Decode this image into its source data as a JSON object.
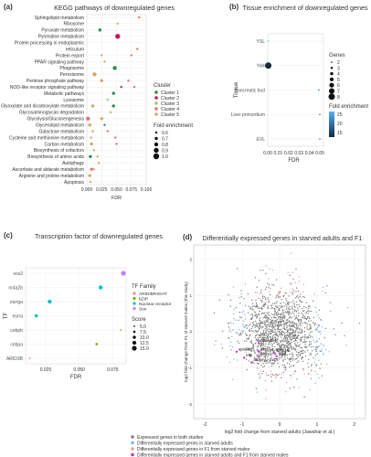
{
  "panels": {
    "a": {
      "letter": "(a)",
      "title": "KEGG pathways of downregulated genes"
    },
    "b": {
      "letter": "(b)",
      "title": "Tissue enrichment of downregulated genes"
    },
    "c": {
      "letter": "(c)",
      "title": "Transcription factor of downregulated genes"
    },
    "d": {
      "letter": "(d)",
      "title": "Differentially expressed genes in starved adults and F1"
    }
  },
  "chart_data": [
    {
      "id": "a",
      "type": "scatter",
      "title": "KEGG pathways of downregulated genes",
      "xlabel": "FDR",
      "ylabel": "",
      "xlim": [
        0,
        0.1
      ],
      "xticks": [
        "0.000",
        "0.025",
        "0.050",
        "0.075",
        "0.100"
      ],
      "xtick_values": [
        0,
        0.025,
        0.05,
        0.075,
        0.1
      ],
      "categories": [
        "Sphingolipid metabolism",
        "Ribosome",
        "Pyruvate metabolism",
        "Pyrimidine metabolism",
        "Protein processing in endoplasmic",
        "reticulum",
        "Protein export",
        "PPAR signaling pathway",
        "Phagosome",
        "Peroxisome",
        "Pentose phosphate pathway",
        "NOD-like receptor signaling pathway",
        "Metabolic pathways",
        "Lysosome",
        "Glyoxylate and dicarboxylate metabolism",
        "Glycosaminoglycan degradation",
        "Glycolysis/Gluconeogenesis",
        "Glycerolipid metabolism",
        "Galactose metabolism",
        "Cysteine and methionine metabolism",
        "Carbon metabolism",
        "Biosynthesis of cofactors",
        "Biosynthesis of amino acids",
        "Autophagy",
        "Ascorbate and aldarate metabolism",
        "Arginine and proline metabolism",
        "Apoptosis"
      ],
      "points": [
        {
          "row": 0,
          "x": 0.088,
          "cluster": 4,
          "fe": 0.6
        },
        {
          "row": 1,
          "x": 0.052,
          "cluster": 3,
          "fe": 0.6
        },
        {
          "row": 2,
          "x": 0.022,
          "cluster": 1,
          "fe": 0.7
        },
        {
          "row": 3,
          "x": 0.052,
          "cluster": 2,
          "fe": 0.9
        },
        {
          "row": 5,
          "x": 0.085,
          "cluster": 4,
          "fe": 0.6
        },
        {
          "row": 6,
          "x": 0.025,
          "cluster": 5,
          "fe": 0.6
        },
        {
          "row": 6,
          "x": 0.075,
          "cluster": 4,
          "fe": 0.6
        },
        {
          "row": 7,
          "x": 0.03,
          "cluster": 5,
          "fe": 0.6
        },
        {
          "row": 8,
          "x": 0.047,
          "cluster": 1,
          "fe": 0.8
        },
        {
          "row": 9,
          "x": 0.013,
          "cluster": 5,
          "fe": 0.8
        },
        {
          "row": 10,
          "x": 0.025,
          "cluster": 5,
          "fe": 0.7
        },
        {
          "row": 10,
          "x": 0.07,
          "cluster": 4,
          "fe": 0.6
        },
        {
          "row": 11,
          "x": 0.058,
          "cluster": 2,
          "fe": 0.6
        },
        {
          "row": 11,
          "x": 0.08,
          "cluster": 4,
          "fe": 0.6
        },
        {
          "row": 12,
          "x": 0.045,
          "cluster": 1,
          "fe": 0.7
        },
        {
          "row": 13,
          "x": 0.035,
          "cluster": 3,
          "fe": 0.6
        },
        {
          "row": 14,
          "x": 0.01,
          "cluster": 5,
          "fe": 0.7
        },
        {
          "row": 14,
          "x": 0.045,
          "cluster": 1,
          "fe": 0.7
        },
        {
          "row": 15,
          "x": 0.04,
          "cluster": 3,
          "fe": 0.6
        },
        {
          "row": 16,
          "x": 0.002,
          "cluster": 4,
          "fe": 0.8
        },
        {
          "row": 16,
          "x": 0.025,
          "cluster": 5,
          "fe": 0.7
        },
        {
          "row": 17,
          "x": 0.005,
          "cluster": 5,
          "fe": 0.7
        },
        {
          "row": 17,
          "x": 0.03,
          "cluster": 1,
          "fe": 0.6
        },
        {
          "row": 18,
          "x": 0.01,
          "cluster": 5,
          "fe": 0.6
        },
        {
          "row": 18,
          "x": 0.035,
          "cluster": 4,
          "fe": 0.6
        },
        {
          "row": 19,
          "x": 0.007,
          "cluster": 5,
          "fe": 0.6
        },
        {
          "row": 19,
          "x": 0.048,
          "cluster": 4,
          "fe": 0.6
        },
        {
          "row": 20,
          "x": 0.008,
          "cluster": 5,
          "fe": 0.7
        },
        {
          "row": 20,
          "x": 0.05,
          "cluster": 4,
          "fe": 0.6
        },
        {
          "row": 21,
          "x": 0.012,
          "cluster": 5,
          "fe": 0.6
        },
        {
          "row": 22,
          "x": 0.006,
          "cluster": 1,
          "fe": 0.7
        },
        {
          "row": 22,
          "x": 0.018,
          "cluster": 5,
          "fe": 0.6
        },
        {
          "row": 23,
          "x": 0.02,
          "cluster": 5,
          "fe": 0.6
        },
        {
          "row": 24,
          "x": 0.008,
          "cluster": 4,
          "fe": 0.7
        },
        {
          "row": 24,
          "x": 0.012,
          "cluster": 5,
          "fe": 0.6
        },
        {
          "row": 25,
          "x": 0.005,
          "cluster": 5,
          "fe": 0.7
        },
        {
          "row": 26,
          "x": 0.006,
          "cluster": 5,
          "fe": 0.6
        }
      ],
      "legend_cluster": {
        "title": "Cluster",
        "items": [
          "Cluster 1",
          "Cluster 2",
          "Cluster 3",
          "Cluster 4",
          "Cluster 5"
        ],
        "colors": [
          "#2e8b57",
          "#c2185b",
          "#9ccc65",
          "#e57373",
          "#d4a76a"
        ]
      },
      "legend_size": {
        "title": "Fold enrichment",
        "items": [
          "0.6",
          "0.7",
          "0.8",
          "0.9",
          "1.0"
        ],
        "values": [
          0.6,
          0.7,
          0.8,
          0.9,
          1.0
        ]
      }
    },
    {
      "id": "b",
      "type": "scatter",
      "title": "Tissue enrichment of downregulated genes",
      "xlabel": "FDR",
      "ylabel": "Tissue",
      "xlim": [
        0,
        0.05
      ],
      "xticks": [
        "0.00",
        "0.01",
        "0.02",
        "0.03",
        "0.04",
        "0.05"
      ],
      "xtick_values": [
        0,
        0.01,
        0.02,
        0.03,
        0.04,
        0.05
      ],
      "categories": [
        "YSL",
        "Yolk",
        "Pancreatic bud",
        "Liver primordium",
        "EVL"
      ],
      "points": [
        {
          "row": 0,
          "x": 0.0005,
          "genes": 2,
          "fe": 25
        },
        {
          "row": 1,
          "x": 0.0005,
          "genes": 8,
          "fe": 12
        },
        {
          "row": 2,
          "x": 0.049,
          "genes": 2,
          "fe": 18
        },
        {
          "row": 3,
          "x": 0.05,
          "genes": 2,
          "fe": 18
        },
        {
          "row": 4,
          "x": 0.05,
          "genes": 2,
          "fe": 18
        }
      ],
      "legend_genes": {
        "title": "Genes",
        "items": [
          "2",
          "3",
          "4",
          "5",
          "6",
          "7",
          "8"
        ],
        "values": [
          2,
          3,
          4,
          5,
          6,
          7,
          8
        ]
      },
      "legend_fold": {
        "title": "Fold enrichment",
        "ticks": [
          "25",
          "20",
          "15"
        ],
        "low_color": "#132b43",
        "high_color": "#56b1f7"
      }
    },
    {
      "id": "c",
      "type": "scatter",
      "title": "Transcription factor of downregulated genes",
      "xlabel": "FDR",
      "ylabel": "TF",
      "xlim": [
        0.01,
        0.085
      ],
      "xticks": [
        "0.025",
        "0.050",
        "0.075"
      ],
      "xtick_values": [
        0.025,
        0.05,
        0.075
      ],
      "categories": [
        "sox2",
        "nr4a2b",
        "esrrga",
        "esrra",
        "cebpb",
        "cebpa",
        "ARID3B"
      ],
      "points": [
        {
          "row": 0,
          "x": 0.083,
          "family": "Sox",
          "score": 15
        },
        {
          "row": 1,
          "x": 0.066,
          "family": "Nuclear receptor",
          "score": 12.5
        },
        {
          "row": 2,
          "x": 0.028,
          "family": "Nuclear receptor",
          "score": 12.5
        },
        {
          "row": 3,
          "x": 0.018,
          "family": "Nuclear receptor",
          "score": 10
        },
        {
          "row": 4,
          "x": 0.081,
          "family": "bZIP",
          "score": 5
        },
        {
          "row": 5,
          "x": 0.063,
          "family": "bZIP",
          "score": 7.5
        },
        {
          "row": 6,
          "x": 0.013,
          "family": "ARID/BRIGHT",
          "score": 5
        }
      ],
      "legend_family": {
        "title": "TF Family",
        "items": [
          "ARID/BRIGHT",
          "bZIP",
          "Nuclear receptor",
          "Sox"
        ],
        "colors": [
          "#f48a82",
          "#7cae00",
          "#00bfc4",
          "#c77cff"
        ]
      },
      "legend_score": {
        "title": "Score",
        "items": [
          "5.0",
          "7.5",
          "10.0",
          "12.5",
          "15.0"
        ],
        "values": [
          5,
          7.5,
          10,
          12.5,
          15
        ]
      }
    },
    {
      "id": "d",
      "type": "scatter",
      "title": "Differentially expressed genes in starved adults and F1",
      "xlabel": "log2 fold change from starved adults (Jawahar et al.)",
      "ylabel": "log2 fold change from F1 of starved males (this study)",
      "xlim": [
        -2.3,
        2.3
      ],
      "ylim": [
        -2.4,
        2.4
      ],
      "xticks": [
        "-2",
        "-1",
        "0",
        "1",
        "2"
      ],
      "xtick_values": [
        -2,
        -1,
        0,
        1,
        2
      ],
      "yticks": [
        "-2",
        "-1",
        "0",
        "1",
        "2"
      ],
      "ytick_values": [
        -2,
        -1,
        0,
        1,
        2
      ],
      "gene_labels": [
        {
          "text": "apoa4b.1",
          "x": -0.55,
          "y": -0.32
        },
        {
          "text": "apoa4b.2",
          "x": -1.15,
          "y": -0.55
        },
        {
          "text": "hbaa1",
          "x": -0.55,
          "y": -0.68
        },
        {
          "text": "mtp",
          "x": -0.95,
          "y": -0.72
        },
        {
          "text": "apoa1a",
          "x": -0.15,
          "y": -0.58
        },
        {
          "text": "bco1",
          "x": -0.08,
          "y": -0.68
        },
        {
          "text": "sepp1a",
          "x": -0.55,
          "y": -0.55
        },
        {
          "text": "si:dkeyp-1h4.6",
          "x": -0.75,
          "y": -0.85
        }
      ],
      "legend": [
        {
          "label": "Expressed genes in both studies",
          "color": "#7f7f7f"
        },
        {
          "label": "Differentially expressed genes in starved adults",
          "color": "#7fb8e8"
        },
        {
          "label": "Differentially expressed genes in F1 from starved males",
          "color": "#e8a0a0"
        },
        {
          "label": "Differentially expressed genes in starved adults and F1 from starved males",
          "color": "#cc33cc"
        }
      ]
    }
  ]
}
